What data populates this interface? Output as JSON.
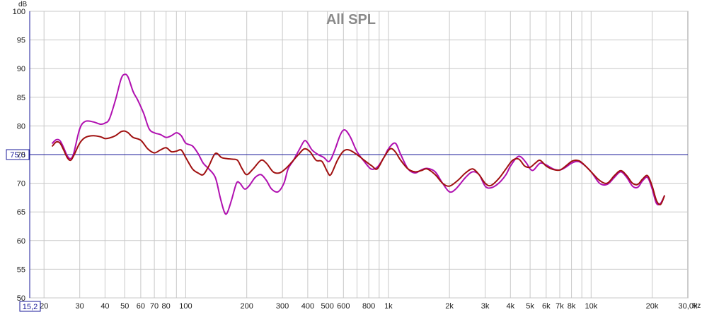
{
  "chart_data": {
    "type": "line",
    "title": "All SPL",
    "ylabel": "dB",
    "xunit": "Hz",
    "xscale": "log",
    "xlim": [
      17,
      30000
    ],
    "ylim": [
      50,
      100
    ],
    "grid": true,
    "y_ticks": [
      50,
      55,
      60,
      65,
      70,
      75,
      80,
      85,
      90,
      95,
      100
    ],
    "x_ticks": [
      {
        "value": 20,
        "label": "20"
      },
      {
        "value": 30,
        "label": "30"
      },
      {
        "value": 40,
        "label": "40"
      },
      {
        "value": 50,
        "label": "50"
      },
      {
        "value": 60,
        "label": "60"
      },
      {
        "value": 70,
        "label": "70"
      },
      {
        "value": 80,
        "label": "80"
      },
      {
        "value": 100,
        "label": "100"
      },
      {
        "value": 200,
        "label": "200"
      },
      {
        "value": 300,
        "label": "300"
      },
      {
        "value": 400,
        "label": "400"
      },
      {
        "value": 500,
        "label": "500"
      },
      {
        "value": 600,
        "label": "600"
      },
      {
        "value": 800,
        "label": "800"
      },
      {
        "value": 1000,
        "label": "1k"
      },
      {
        "value": 2000,
        "label": "2k"
      },
      {
        "value": 3000,
        "label": "3k"
      },
      {
        "value": 4000,
        "label": "4k"
      },
      {
        "value": 5000,
        "label": "5k"
      },
      {
        "value": 6000,
        "label": "6k"
      },
      {
        "value": 7000,
        "label": "7k"
      },
      {
        "value": 8000,
        "label": "8k"
      },
      {
        "value": 10000,
        "label": "10k"
      },
      {
        "value": 20000,
        "label": "20k"
      },
      {
        "value": 30000,
        "label": "30,0k"
      }
    ],
    "cursor": {
      "y": 75.0,
      "y_label": "75,0",
      "x": 15.2,
      "x_label": "15,2"
    },
    "series": [
      {
        "color": "#b010b0",
        "points": [
          [
            22,
            77
          ],
          [
            23,
            77.6
          ],
          [
            24,
            77.4
          ],
          [
            25,
            76.2
          ],
          [
            26,
            74.8
          ],
          [
            27,
            74.3
          ],
          [
            28,
            75.2
          ],
          [
            30,
            79.5
          ],
          [
            32,
            80.8
          ],
          [
            35,
            80.7
          ],
          [
            38,
            80.3
          ],
          [
            40,
            80.5
          ],
          [
            42,
            81.2
          ],
          [
            45,
            84.5
          ],
          [
            48,
            88.2
          ],
          [
            50,
            89.0
          ],
          [
            52,
            88.5
          ],
          [
            55,
            86.0
          ],
          [
            58,
            84.5
          ],
          [
            62,
            82.2
          ],
          [
            66,
            79.5
          ],
          [
            70,
            78.8
          ],
          [
            75,
            78.5
          ],
          [
            80,
            78.0
          ],
          [
            85,
            78.3
          ],
          [
            90,
            78.8
          ],
          [
            95,
            78.3
          ],
          [
            100,
            77.0
          ],
          [
            108,
            76.5
          ],
          [
            115,
            75.2
          ],
          [
            122,
            73.5
          ],
          [
            130,
            72.5
          ],
          [
            140,
            71.0
          ],
          [
            148,
            67.5
          ],
          [
            155,
            65.0
          ],
          [
            160,
            64.8
          ],
          [
            168,
            67.0
          ],
          [
            178,
            70.0
          ],
          [
            185,
            70.0
          ],
          [
            195,
            69.0
          ],
          [
            205,
            69.5
          ],
          [
            220,
            71.0
          ],
          [
            235,
            71.5
          ],
          [
            250,
            70.5
          ],
          [
            265,
            69.0
          ],
          [
            285,
            68.5
          ],
          [
            305,
            70.0
          ],
          [
            320,
            72.5
          ],
          [
            340,
            74.0
          ],
          [
            365,
            76.0
          ],
          [
            385,
            77.4
          ],
          [
            400,
            77.0
          ],
          [
            420,
            75.8
          ],
          [
            450,
            75.0
          ],
          [
            480,
            74.5
          ],
          [
            510,
            73.8
          ],
          [
            540,
            75.5
          ],
          [
            580,
            78.5
          ],
          [
            610,
            79.3
          ],
          [
            650,
            78.0
          ],
          [
            700,
            75.5
          ],
          [
            760,
            73.8
          ],
          [
            820,
            72.5
          ],
          [
            880,
            72.8
          ],
          [
            950,
            74.5
          ],
          [
            1000,
            76.0
          ],
          [
            1080,
            77.0
          ],
          [
            1150,
            75.0
          ],
          [
            1250,
            72.5
          ],
          [
            1350,
            71.8
          ],
          [
            1450,
            72.3
          ],
          [
            1550,
            72.6
          ],
          [
            1700,
            72.0
          ],
          [
            1850,
            70.0
          ],
          [
            2000,
            68.5
          ],
          [
            2150,
            69.0
          ],
          [
            2400,
            71.0
          ],
          [
            2600,
            72.0
          ],
          [
            2800,
            71.5
          ],
          [
            3000,
            69.5
          ],
          [
            3200,
            69.2
          ],
          [
            3500,
            70.0
          ],
          [
            3800,
            71.5
          ],
          [
            4000,
            73.0
          ],
          [
            4300,
            74.5
          ],
          [
            4500,
            74.6
          ],
          [
            4800,
            73.5
          ],
          [
            5000,
            72.5
          ],
          [
            5200,
            72.3
          ],
          [
            5600,
            73.5
          ],
          [
            6000,
            73.2
          ],
          [
            6500,
            72.5
          ],
          [
            7000,
            72.3
          ],
          [
            7500,
            72.8
          ],
          [
            8000,
            73.5
          ],
          [
            8500,
            73.8
          ],
          [
            9000,
            73.5
          ],
          [
            10000,
            72.0
          ],
          [
            11000,
            70.0
          ],
          [
            12000,
            69.8
          ],
          [
            13000,
            71.0
          ],
          [
            14000,
            72.0
          ],
          [
            15000,
            71.0
          ],
          [
            16000,
            69.5
          ],
          [
            17000,
            69.3
          ],
          [
            18000,
            70.5
          ],
          [
            19000,
            71.0
          ],
          [
            20000,
            69.0
          ],
          [
            21000,
            66.5
          ],
          [
            22000,
            66.5
          ],
          [
            23000,
            67.8
          ]
        ]
      },
      {
        "color": "#a01010",
        "points": [
          [
            22,
            76.5
          ],
          [
            23,
            77.2
          ],
          [
            24,
            77.0
          ],
          [
            25,
            75.8
          ],
          [
            26,
            74.5
          ],
          [
            27,
            74.0
          ],
          [
            28,
            74.8
          ],
          [
            30,
            77.0
          ],
          [
            32,
            78.0
          ],
          [
            35,
            78.3
          ],
          [
            38,
            78.1
          ],
          [
            40,
            77.8
          ],
          [
            42,
            77.9
          ],
          [
            45,
            78.3
          ],
          [
            48,
            79.0
          ],
          [
            50,
            79.1
          ],
          [
            52,
            78.8
          ],
          [
            55,
            78.0
          ],
          [
            60,
            77.5
          ],
          [
            65,
            76.0
          ],
          [
            70,
            75.3
          ],
          [
            75,
            75.8
          ],
          [
            80,
            76.2
          ],
          [
            85,
            75.5
          ],
          [
            90,
            75.6
          ],
          [
            95,
            75.8
          ],
          [
            100,
            74.5
          ],
          [
            108,
            72.5
          ],
          [
            115,
            71.8
          ],
          [
            122,
            71.5
          ],
          [
            130,
            73.0
          ],
          [
            140,
            75.2
          ],
          [
            150,
            74.5
          ],
          [
            160,
            74.3
          ],
          [
            170,
            74.2
          ],
          [
            180,
            74.0
          ],
          [
            190,
            72.5
          ],
          [
            200,
            71.5
          ],
          [
            215,
            72.5
          ],
          [
            235,
            74.0
          ],
          [
            250,
            73.5
          ],
          [
            270,
            72.0
          ],
          [
            290,
            71.8
          ],
          [
            310,
            72.5
          ],
          [
            330,
            73.5
          ],
          [
            360,
            75.0
          ],
          [
            385,
            76.0
          ],
          [
            410,
            75.5
          ],
          [
            440,
            74.0
          ],
          [
            470,
            73.8
          ],
          [
            500,
            72.0
          ],
          [
            520,
            71.5
          ],
          [
            560,
            74.0
          ],
          [
            600,
            75.6
          ],
          [
            640,
            75.8
          ],
          [
            700,
            75.0
          ],
          [
            760,
            74.0
          ],
          [
            830,
            73.0
          ],
          [
            880,
            72.5
          ],
          [
            950,
            74.5
          ],
          [
            1020,
            76.0
          ],
          [
            1080,
            75.5
          ],
          [
            1150,
            74.0
          ],
          [
            1250,
            72.5
          ],
          [
            1350,
            72.0
          ],
          [
            1450,
            72.2
          ],
          [
            1550,
            72.5
          ],
          [
            1700,
            71.5
          ],
          [
            1850,
            70.0
          ],
          [
            2000,
            69.5
          ],
          [
            2200,
            70.5
          ],
          [
            2400,
            71.8
          ],
          [
            2600,
            72.5
          ],
          [
            2800,
            71.5
          ],
          [
            3000,
            70.0
          ],
          [
            3200,
            69.6
          ],
          [
            3500,
            70.8
          ],
          [
            3800,
            72.5
          ],
          [
            4100,
            74.0
          ],
          [
            4400,
            74.2
          ],
          [
            4700,
            73.0
          ],
          [
            5000,
            72.8
          ],
          [
            5300,
            73.5
          ],
          [
            5600,
            74.0
          ],
          [
            6000,
            73.0
          ],
          [
            6500,
            72.4
          ],
          [
            7000,
            72.3
          ],
          [
            7500,
            73.0
          ],
          [
            8000,
            73.8
          ],
          [
            8500,
            74.0
          ],
          [
            9000,
            73.6
          ],
          [
            10000,
            72.0
          ],
          [
            11000,
            70.5
          ],
          [
            12000,
            70.0
          ],
          [
            13000,
            71.3
          ],
          [
            14000,
            72.2
          ],
          [
            15000,
            71.3
          ],
          [
            16000,
            70.0
          ],
          [
            17000,
            69.8
          ],
          [
            18000,
            70.8
          ],
          [
            19000,
            71.3
          ],
          [
            20000,
            69.5
          ],
          [
            21000,
            67.0
          ],
          [
            22000,
            66.3
          ],
          [
            23000,
            67.8
          ]
        ]
      }
    ]
  }
}
